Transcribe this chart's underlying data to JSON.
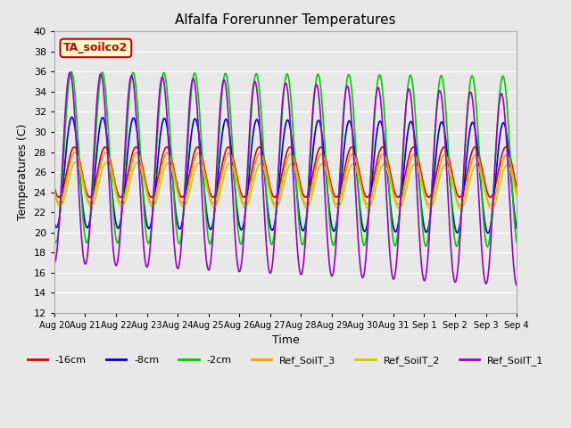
{
  "title": "Alfalfa Forerunner Temperatures",
  "xlabel": "Time",
  "ylabel": "Temperatures (C)",
  "ylim": [
    12,
    40
  ],
  "yticks": [
    12,
    14,
    16,
    18,
    20,
    22,
    24,
    26,
    28,
    30,
    32,
    34,
    36,
    38,
    40
  ],
  "annotation_text": "TA_soilco2",
  "annotation_color": "#cc0000",
  "annotation_bg": "#ffffcc",
  "series": [
    {
      "label": "-16cm",
      "color": "#dd0000"
    },
    {
      "label": "-8cm",
      "color": "#0000cc"
    },
    {
      "label": "-2cm",
      "color": "#00cc00"
    },
    {
      "label": "Ref_SoilT_3",
      "color": "#ff9900"
    },
    {
      "label": "Ref_SoilT_2",
      "color": "#cccc00"
    },
    {
      "label": "Ref_SoilT_1",
      "color": "#9900cc"
    }
  ],
  "plot_bg": "#e8e8e8",
  "fig_bg": "#e8e8e8",
  "grid_color": "#ffffff"
}
